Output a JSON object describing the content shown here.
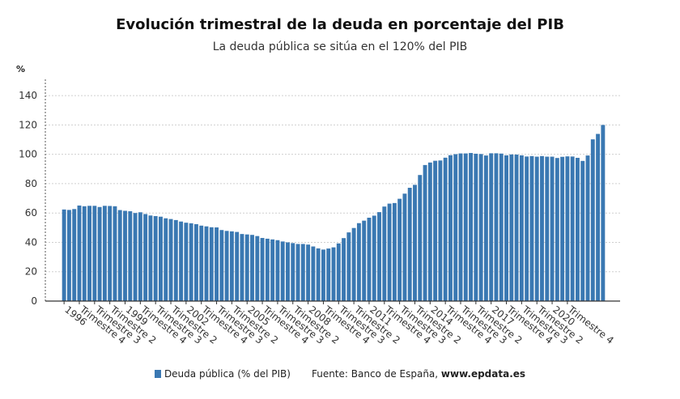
{
  "title": "Evolución trimestral de la deuda en porcentaje del PIB",
  "subtitle": "La deuda pública se sitúa en el 120% del PIB",
  "legend": {
    "series_label": "Deuda pública (% del PIB)",
    "source_prefix": "Fuente: Banco de España, ",
    "source_site": "www.epdata.es"
  },
  "colors": {
    "bar": "#3a78b2",
    "grid": "#cfcfcf",
    "axis": "#555555"
  },
  "chart_data": {
    "type": "bar",
    "title": "Evolución trimestral de la deuda en porcentaje del PIB",
    "subtitle": "La deuda pública se sitúa en el 120% del PIB",
    "ylabel": "%",
    "ylim": [
      0,
      150
    ],
    "yticks": [
      0,
      20,
      40,
      60,
      80,
      100,
      120,
      140
    ],
    "grid": true,
    "legend_position": "bottom",
    "series": [
      {
        "name": "Deuda pública (% del PIB)",
        "values": [
          62.4,
          62.1,
          62.7,
          65.1,
          64.6,
          64.9,
          64.9,
          64.1,
          64.9,
          64.8,
          64.6,
          62.0,
          61.5,
          61.2,
          60.0,
          60.5,
          59.3,
          58.3,
          57.9,
          57.5,
          56.4,
          55.9,
          55.2,
          54.2,
          53.4,
          53.0,
          52.4,
          51.4,
          50.9,
          50.3,
          50.2,
          48.4,
          47.8,
          47.5,
          47.1,
          45.7,
          45.4,
          45.1,
          44.3,
          43.0,
          42.5,
          42.0,
          41.5,
          40.6,
          40.0,
          39.5,
          38.9,
          38.9,
          38.5,
          37.2,
          35.9,
          35.1,
          35.8,
          36.6,
          39.3,
          42.9,
          46.8,
          49.8,
          53.1,
          54.8,
          56.8,
          58.2,
          60.6,
          64.4,
          66.4,
          66.8,
          69.7,
          73.2,
          77.2,
          79.2,
          85.9,
          92.7,
          94.4,
          95.6,
          95.8,
          97.7,
          99.4,
          100.1,
          100.6,
          100.6,
          100.9,
          100.4,
          100.2,
          99.2,
          100.7,
          100.7,
          100.5,
          99.3,
          99.9,
          99.8,
          99.3,
          98.5,
          98.8,
          98.4,
          98.8,
          98.4,
          98.4,
          97.5,
          98.3,
          98.6,
          98.5,
          97.6,
          95.5,
          99.2,
          110.2,
          113.9,
          120.0
        ]
      }
    ],
    "x_tick_labels": [
      {
        "index": 0,
        "label": "1996"
      },
      {
        "index": 3,
        "label": "Trimestre 4"
      },
      {
        "index": 6,
        "label": "Trimestre 3"
      },
      {
        "index": 9,
        "label": "Trimestre 2"
      },
      {
        "index": 12,
        "label": "1999"
      },
      {
        "index": 15,
        "label": "Trimestre 4"
      },
      {
        "index": 18,
        "label": "Trimestre 3"
      },
      {
        "index": 21,
        "label": "Trimestre 2"
      },
      {
        "index": 24,
        "label": "2002"
      },
      {
        "index": 27,
        "label": "Trimestre 4"
      },
      {
        "index": 30,
        "label": "Trimestre 3"
      },
      {
        "index": 33,
        "label": "Trimestre 2"
      },
      {
        "index": 36,
        "label": "2005"
      },
      {
        "index": 39,
        "label": "Trimestre 4"
      },
      {
        "index": 42,
        "label": "Trimestre 3"
      },
      {
        "index": 45,
        "label": "Trimestre 2"
      },
      {
        "index": 48,
        "label": "2008"
      },
      {
        "index": 51,
        "label": "Trimestre 4"
      },
      {
        "index": 54,
        "label": "Trimestre 3"
      },
      {
        "index": 57,
        "label": "Trimestre 2"
      },
      {
        "index": 60,
        "label": "2011"
      },
      {
        "index": 63,
        "label": "Trimestre 4"
      },
      {
        "index": 66,
        "label": "Trimestre 3"
      },
      {
        "index": 69,
        "label": "Trimestre 2"
      },
      {
        "index": 72,
        "label": "2014"
      },
      {
        "index": 75,
        "label": "Trimestre 4"
      },
      {
        "index": 78,
        "label": "Trimestre 3"
      },
      {
        "index": 81,
        "label": "Trimestre 2"
      },
      {
        "index": 84,
        "label": "2017"
      },
      {
        "index": 87,
        "label": "Trimestre 4"
      },
      {
        "index": 90,
        "label": "Trimestre 3"
      },
      {
        "index": 93,
        "label": "Trimestre 2"
      },
      {
        "index": 96,
        "label": "2020"
      },
      {
        "index": 99,
        "label": "Trimestre 4"
      }
    ]
  }
}
